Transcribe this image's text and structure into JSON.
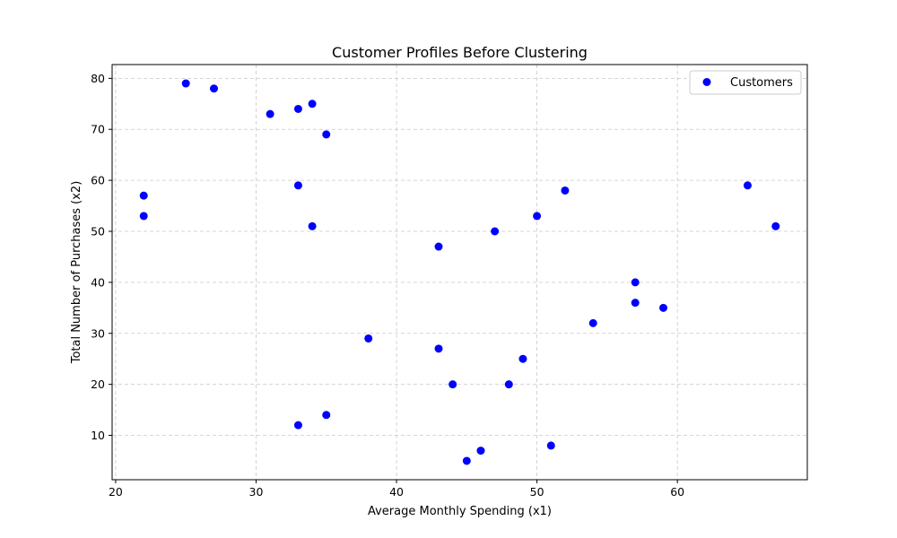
{
  "chart_data": {
    "type": "scatter",
    "title": "Customer Profiles Before Clustering",
    "xlabel": "Average Monthly Spending (x1)",
    "ylabel": "Total Number of Purchases (x2)",
    "xlim": [
      19.75,
      69.25
    ],
    "ylim": [
      1.3,
      82.7
    ],
    "xticks": [
      20,
      30,
      40,
      50,
      60
    ],
    "yticks": [
      10,
      20,
      30,
      40,
      50,
      60,
      70,
      80
    ],
    "grid": true,
    "legend_position": "top-right",
    "series": [
      {
        "name": "Customers",
        "color": "#0000ff",
        "x": [
          25,
          27,
          31,
          33,
          34,
          35,
          33,
          22,
          22,
          34,
          43,
          47,
          50,
          52,
          65,
          67,
          57,
          57,
          59,
          54,
          38,
          43,
          49,
          44,
          48,
          33,
          35,
          51,
          46,
          45
        ],
        "y": [
          79,
          78,
          73,
          74,
          75,
          69,
          59,
          57,
          53,
          51,
          47,
          50,
          53,
          58,
          59,
          51,
          40,
          36,
          35,
          32,
          29,
          27,
          25,
          20,
          20,
          12,
          14,
          8,
          7,
          5
        ]
      }
    ]
  }
}
